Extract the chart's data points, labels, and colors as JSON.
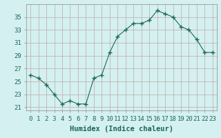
{
  "x": [
    0,
    1,
    2,
    3,
    4,
    5,
    6,
    7,
    8,
    9,
    10,
    11,
    12,
    13,
    14,
    15,
    16,
    17,
    18,
    19,
    20,
    21,
    22,
    23
  ],
  "y": [
    26,
    25.5,
    24.5,
    23,
    21.5,
    22,
    21.5,
    21.5,
    25.5,
    26,
    29.5,
    32,
    33,
    34,
    34,
    34.5,
    36,
    35.5,
    35,
    33.5,
    33,
    31.5,
    29.5,
    29.5
  ],
  "xlabel": "Humidex (Indice chaleur)",
  "ylabel": "",
  "bg_color": "#d4f0f0",
  "grid_color": "#c0a8a8",
  "line_color": "#1a6655",
  "marker_color": "#1a6655",
  "xlim": [
    -0.5,
    23.5
  ],
  "ylim": [
    20.5,
    37
  ],
  "yticks": [
    21,
    23,
    25,
    27,
    29,
    31,
    33,
    35
  ],
  "xticks": [
    0,
    1,
    2,
    3,
    4,
    5,
    6,
    7,
    8,
    9,
    10,
    11,
    12,
    13,
    14,
    15,
    16,
    17,
    18,
    19,
    20,
    21,
    22,
    23
  ],
  "xtick_labels": [
    "0",
    "1",
    "2",
    "3",
    "4",
    "5",
    "6",
    "7",
    "8",
    "9",
    "10",
    "11",
    "12",
    "13",
    "14",
    "15",
    "16",
    "17",
    "18",
    "19",
    "20",
    "21",
    "22",
    "23"
  ],
  "xlabel_fontsize": 7.5,
  "tick_fontsize": 6.5
}
